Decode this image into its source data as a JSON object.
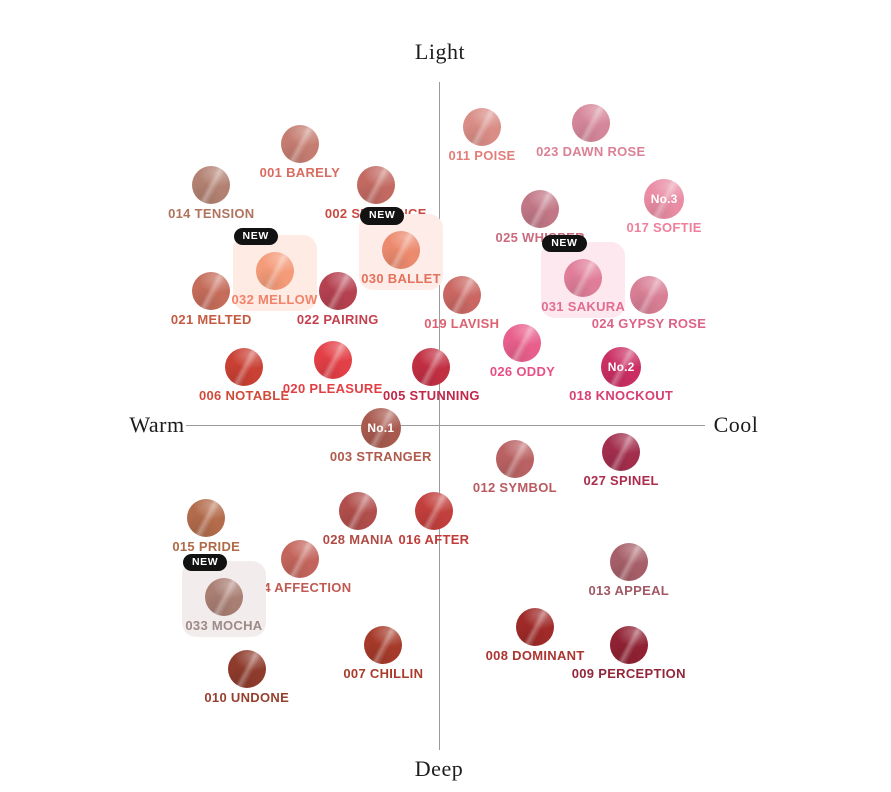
{
  "badge_label": "NEW",
  "chart_data": {
    "type": "scatter",
    "title": "",
    "x_axis": {
      "label_left": "Warm",
      "label_right": "Cool",
      "range": [
        -1,
        1
      ]
    },
    "y_axis": {
      "label_top": "Light",
      "label_bottom": "Deep",
      "range": [
        -1,
        1
      ]
    },
    "legend": "none",
    "grid": false,
    "points": [
      {
        "id": "001",
        "name": "BARELY",
        "label": "001 BARELY",
        "color": "#c57d71",
        "label_color": "#d96b60",
        "warm_cool": -0.55,
        "light_deep": 0.82,
        "tag": "",
        "new": false,
        "box_color": ""
      },
      {
        "id": "014",
        "name": "TENSION",
        "label": "014 TENSION",
        "color": "#b28172",
        "label_color": "#b0735e",
        "warm_cool": -0.9,
        "light_deep": 0.7,
        "tag": "",
        "new": false,
        "box_color": ""
      },
      {
        "id": "002",
        "name": "SEQUENCE",
        "label": "002 SEQUENCE",
        "color": "#c26a62",
        "label_color": "#ca4a42",
        "warm_cool": -0.25,
        "light_deep": 0.7,
        "tag": "",
        "new": false,
        "box_color": ""
      },
      {
        "id": "011",
        "name": "POISE",
        "label": "011 POISE",
        "color": "#d98d86",
        "label_color": "#e27d78",
        "warm_cool": 0.17,
        "light_deep": 0.87,
        "tag": "",
        "new": false,
        "box_color": ""
      },
      {
        "id": "023",
        "name": "DAWN ROSE",
        "label": "023 DAWN ROSE",
        "color": "#d5879a",
        "label_color": "#db8095",
        "warm_cool": 0.6,
        "light_deep": 0.88,
        "tag": "",
        "new": false,
        "box_color": ""
      },
      {
        "id": "025",
        "name": "WHISPER",
        "label": "025 WHISPER",
        "color": "#c17785",
        "label_color": "#ca6a7e",
        "warm_cool": 0.4,
        "light_deep": 0.63,
        "tag": "",
        "new": false,
        "box_color": ""
      },
      {
        "id": "017",
        "name": "SOFTIE",
        "label": "017 SOFTIE",
        "color": "#e98ca4",
        "label_color": "#ee7f9d",
        "warm_cool": 0.89,
        "light_deep": 0.66,
        "tag": "No.3",
        "new": false,
        "box_color": ""
      },
      {
        "id": "030",
        "name": "BALLET",
        "label": "030 BALLET",
        "color": "#ec8a6e",
        "label_color": "#e5705c",
        "warm_cool": -0.15,
        "light_deep": 0.51,
        "tag": "",
        "new": true,
        "box_color": "#fdece7"
      },
      {
        "id": "032",
        "name": "MELLOW",
        "label": "032 MELLOW",
        "color": "#f49b79",
        "label_color": "#f2836a",
        "warm_cool": -0.65,
        "light_deep": 0.45,
        "tag": "",
        "new": true,
        "box_color": "#fdebe4"
      },
      {
        "id": "031",
        "name": "SAKURA",
        "label": "031 SAKURA",
        "color": "#e07e9a",
        "label_color": "#e26d92",
        "warm_cool": 0.57,
        "light_deep": 0.43,
        "tag": "",
        "new": true,
        "box_color": "#fce8ee"
      },
      {
        "id": "021",
        "name": "MELTED",
        "label": "021 MELTED",
        "color": "#c56c5a",
        "label_color": "#c55a42",
        "warm_cool": -0.9,
        "light_deep": 0.39,
        "tag": "",
        "new": false,
        "box_color": ""
      },
      {
        "id": "022",
        "name": "PAIRING",
        "label": "022 PAIRING",
        "color": "#b54150",
        "label_color": "#c4404f",
        "warm_cool": -0.4,
        "light_deep": 0.39,
        "tag": "",
        "new": false,
        "box_color": ""
      },
      {
        "id": "019",
        "name": "LAVISH",
        "label": "019 LAVISH",
        "color": "#ca6763",
        "label_color": "#dd6171",
        "warm_cool": 0.09,
        "light_deep": 0.38,
        "tag": "",
        "new": false,
        "box_color": ""
      },
      {
        "id": "024",
        "name": "GYPSY ROSE",
        "label": "024 GYPSY ROSE",
        "color": "#d87e95",
        "label_color": "#dd6287",
        "warm_cool": 0.83,
        "light_deep": 0.38,
        "tag": "",
        "new": false,
        "box_color": ""
      },
      {
        "id": "026",
        "name": "ODDY",
        "label": "026 ODDY",
        "color": "#e85f8c",
        "label_color": "#e74f84",
        "warm_cool": 0.33,
        "light_deep": 0.24,
        "tag": "",
        "new": false,
        "box_color": ""
      },
      {
        "id": "018",
        "name": "KNOCKOUT",
        "label": "018 KNOCKOUT",
        "color": "#ca2e63",
        "label_color": "#d63f72",
        "warm_cool": 0.72,
        "light_deep": 0.17,
        "tag": "No.2",
        "new": false,
        "box_color": ""
      },
      {
        "id": "006",
        "name": "NOTABLE",
        "label": "006 NOTABLE",
        "color": "#ca4034",
        "label_color": "#d14a39",
        "warm_cool": -0.77,
        "light_deep": 0.17,
        "tag": "",
        "new": false,
        "box_color": ""
      },
      {
        "id": "020",
        "name": "PLEASURE",
        "label": "020 PLEASURE",
        "color": "#e33f46",
        "label_color": "#e23f44",
        "warm_cool": -0.42,
        "light_deep": 0.19,
        "tag": "",
        "new": false,
        "box_color": ""
      },
      {
        "id": "005",
        "name": "STUNNING",
        "label": "005 STUNNING",
        "color": "#c12f42",
        "label_color": "#c02748",
        "warm_cool": -0.03,
        "light_deep": 0.17,
        "tag": "",
        "new": false,
        "box_color": ""
      },
      {
        "id": "003",
        "name": "STRANGER",
        "label": "003 STRANGER",
        "color": "#a85a4f",
        "label_color": "#b05a4c",
        "warm_cool": -0.23,
        "light_deep": -0.01,
        "tag": "No.1",
        "new": false,
        "box_color": ""
      },
      {
        "id": "012",
        "name": "SYMBOL",
        "label": "012 SYMBOL",
        "color": "#ba6263",
        "label_color": "#b85a60",
        "warm_cool": 0.3,
        "light_deep": -0.1,
        "tag": "",
        "new": false,
        "box_color": ""
      },
      {
        "id": "027",
        "name": "SPINEL",
        "label": "027 SPINEL",
        "color": "#a22e4c",
        "label_color": "#ab2c4c",
        "warm_cool": 0.72,
        "light_deep": -0.08,
        "tag": "",
        "new": false,
        "box_color": ""
      },
      {
        "id": "015",
        "name": "PRIDE",
        "label": "015 PRIDE",
        "color": "#b26b4b",
        "label_color": "#b06a45",
        "warm_cool": -0.92,
        "light_deep": -0.27,
        "tag": "",
        "new": false,
        "box_color": ""
      },
      {
        "id": "028",
        "name": "MANIA",
        "label": "028 MANIA",
        "color": "#b04e4b",
        "label_color": "#b04a44",
        "warm_cool": -0.32,
        "light_deep": -0.25,
        "tag": "",
        "new": false,
        "box_color": ""
      },
      {
        "id": "016",
        "name": "AFTER",
        "label": "016 AFTER",
        "color": "#c13f3c",
        "label_color": "#c33b38",
        "warm_cool": -0.02,
        "light_deep": -0.25,
        "tag": "",
        "new": false,
        "box_color": ""
      },
      {
        "id": "004",
        "name": "AFFECTION",
        "label": "004 AFFECTION",
        "color": "#c3655c",
        "label_color": "#c05a52",
        "warm_cool": -0.55,
        "light_deep": -0.39,
        "tag": "",
        "new": false,
        "box_color": ""
      },
      {
        "id": "033",
        "name": "MOCHA",
        "label": "033 MOCHA",
        "color": "#a97e73",
        "label_color": "#9c8a87",
        "warm_cool": -0.85,
        "light_deep": -0.5,
        "tag": "",
        "new": true,
        "box_color": "#f2edec"
      },
      {
        "id": "013",
        "name": "APPEAL",
        "label": "013 APPEAL",
        "color": "#a65f68",
        "label_color": "#a05964",
        "warm_cool": 0.75,
        "light_deep": -0.4,
        "tag": "",
        "new": false,
        "box_color": ""
      },
      {
        "id": "010",
        "name": "UNDONE",
        "label": "010 UNDONE",
        "color": "#8e3b2c",
        "label_color": "#97402e",
        "warm_cool": -0.76,
        "light_deep": -0.71,
        "tag": "",
        "new": false,
        "box_color": ""
      },
      {
        "id": "007",
        "name": "CHILLIN",
        "label": "007 CHILLIN",
        "color": "#a53a2a",
        "label_color": "#a93b2a",
        "warm_cool": -0.22,
        "light_deep": -0.64,
        "tag": "",
        "new": false,
        "box_color": ""
      },
      {
        "id": "008",
        "name": "DOMINANT",
        "label": "008 DOMINANT",
        "color": "#9f2a28",
        "label_color": "#ac3431",
        "warm_cool": 0.38,
        "light_deep": -0.59,
        "tag": "",
        "new": false,
        "box_color": ""
      },
      {
        "id": "009",
        "name": "PERCEPTION",
        "label": "009 PERCEPTION",
        "color": "#8f2133",
        "label_color": "#93253a",
        "warm_cool": 0.75,
        "light_deep": -0.64,
        "tag": "",
        "new": false,
        "box_color": ""
      }
    ]
  }
}
